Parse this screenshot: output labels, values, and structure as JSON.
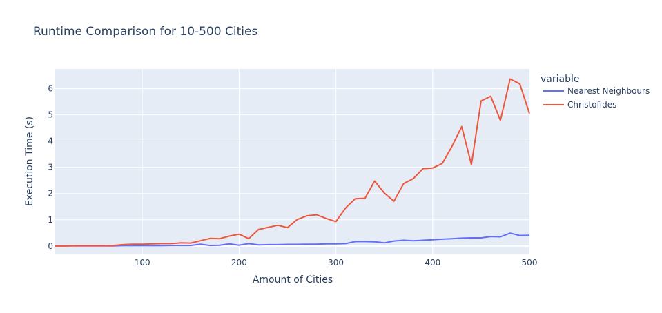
{
  "chart_data": {
    "type": "line",
    "title": "Runtime Comparison for 10-500 Cities",
    "xlabel": "Amount of Cities",
    "ylabel": "Execution Time (s)",
    "xlim": [
      10,
      500
    ],
    "ylim": [
      -0.32,
      6.75
    ],
    "xticks": [
      100,
      200,
      300,
      400,
      500
    ],
    "yticks": [
      0,
      1,
      2,
      3,
      4,
      5,
      6
    ],
    "grid": true,
    "legend_title": "variable",
    "legend_position": "right",
    "series": [
      {
        "name": "Nearest Neighbours",
        "color": "#636efa",
        "x": [
          10,
          20,
          30,
          40,
          50,
          60,
          70,
          80,
          90,
          100,
          110,
          120,
          130,
          140,
          150,
          160,
          170,
          180,
          190,
          200,
          210,
          220,
          230,
          240,
          250,
          260,
          270,
          280,
          290,
          300,
          310,
          320,
          330,
          340,
          350,
          360,
          370,
          380,
          390,
          400,
          410,
          420,
          430,
          440,
          450,
          460,
          470,
          480,
          490,
          500
        ],
        "y": [
          0.0,
          0.0,
          0.0,
          0.0,
          0.0,
          0.0,
          0.0,
          0.01,
          0.01,
          0.01,
          0.01,
          0.01,
          0.02,
          0.02,
          0.02,
          0.07,
          0.02,
          0.03,
          0.08,
          0.03,
          0.09,
          0.04,
          0.05,
          0.05,
          0.06,
          0.06,
          0.07,
          0.07,
          0.08,
          0.08,
          0.09,
          0.17,
          0.17,
          0.16,
          0.12,
          0.19,
          0.22,
          0.2,
          0.22,
          0.24,
          0.26,
          0.28,
          0.3,
          0.31,
          0.31,
          0.36,
          0.35,
          0.49,
          0.4,
          0.41
        ]
      },
      {
        "name": "Christofides",
        "color": "#ef553b",
        "x": [
          10,
          20,
          30,
          40,
          50,
          60,
          70,
          80,
          90,
          100,
          110,
          120,
          130,
          140,
          150,
          160,
          170,
          180,
          190,
          200,
          210,
          220,
          230,
          240,
          250,
          260,
          270,
          280,
          290,
          300,
          310,
          320,
          330,
          340,
          350,
          360,
          370,
          380,
          390,
          400,
          410,
          420,
          430,
          440,
          450,
          460,
          470,
          480,
          490,
          500
        ],
        "y": [
          0.0,
          0.0,
          0.01,
          0.01,
          0.01,
          0.01,
          0.02,
          0.05,
          0.07,
          0.07,
          0.08,
          0.09,
          0.09,
          0.12,
          0.11,
          0.2,
          0.29,
          0.28,
          0.38,
          0.45,
          0.28,
          0.63,
          0.71,
          0.79,
          0.7,
          1.01,
          1.15,
          1.19,
          1.05,
          0.93,
          1.45,
          1.8,
          1.82,
          2.48,
          2.02,
          1.71,
          2.38,
          2.57,
          2.95,
          2.97,
          3.15,
          3.8,
          4.55,
          3.1,
          5.53,
          5.71,
          4.79,
          6.37,
          6.18,
          5.05
        ]
      }
    ]
  }
}
